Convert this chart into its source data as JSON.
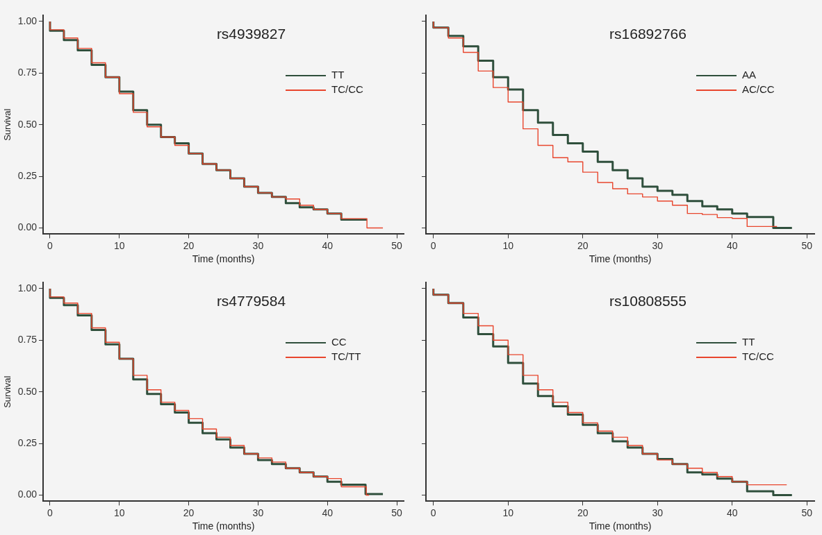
{
  "chart_data": [
    {
      "type": "step",
      "title": "rs4939827",
      "xlabel": "Time (months)",
      "ylabel": "Survival",
      "xlim": [
        -1,
        51
      ],
      "xticks": [
        0,
        10,
        20,
        30,
        40,
        50
      ],
      "ylim": [
        -0.03,
        1.03
      ],
      "yticks": [
        {
          "value": 0,
          "label": "0.00"
        },
        {
          "value": 0.25,
          "label": "0.25"
        },
        {
          "value": 0.5,
          "label": "0.50"
        },
        {
          "value": 0.75,
          "label": "0.75"
        },
        {
          "value": 1,
          "label": "1.00"
        }
      ],
      "legend": "top right",
      "grid": false,
      "marker": "none",
      "line_style": "solid",
      "series": [
        {
          "name": "TT",
          "color": "#2f4f3c",
          "x": [
            0,
            2,
            4,
            6,
            8,
            10,
            12,
            14,
            16,
            18,
            20,
            22,
            24,
            26,
            28,
            30,
            32,
            34,
            36,
            38,
            40,
            42,
            45.7
          ],
          "values": [
            1,
            0.955,
            0.91,
            0.86,
            0.79,
            0.73,
            0.66,
            0.57,
            0.5,
            0.44,
            0.41,
            0.36,
            0.31,
            0.28,
            0.24,
            0.2,
            0.17,
            0.15,
            0.12,
            0.1,
            0.09,
            0.07,
            0.04
          ]
        },
        {
          "name": "TC/CC",
          "color": "#e8452c",
          "x": [
            0,
            2,
            4,
            6,
            8,
            10,
            12,
            14,
            16,
            18,
            20,
            22,
            24,
            26,
            28,
            30,
            32,
            34,
            36,
            38,
            40,
            42,
            45.7,
            48
          ],
          "values": [
            1,
            0.96,
            0.92,
            0.87,
            0.8,
            0.73,
            0.65,
            0.56,
            0.49,
            0.44,
            0.4,
            0.36,
            0.31,
            0.28,
            0.24,
            0.2,
            0.17,
            0.15,
            0.14,
            0.11,
            0.09,
            0.07,
            0.045,
            0
          ]
        }
      ]
    },
    {
      "type": "step",
      "title": "rs16892766",
      "xlabel": "Time (months)",
      "xlim": [
        -1,
        51
      ],
      "xticks": [
        0,
        10,
        20,
        30,
        40,
        50
      ],
      "ylim": [
        -0.03,
        1.03
      ],
      "yticks": [
        {
          "value": 0,
          "label": null
        },
        {
          "value": 0.25,
          "label": null
        },
        {
          "value": 0.5,
          "label": null
        },
        {
          "value": 0.75,
          "label": null
        },
        {
          "value": 1,
          "label": null
        }
      ],
      "tick_labels": "x",
      "legend": "top right",
      "grid": false,
      "marker": "none",
      "line_style": "solid",
      "series": [
        {
          "name": "AA",
          "color": "#2f4f3c",
          "x": [
            0,
            2,
            4,
            6,
            8,
            10,
            12,
            14,
            16,
            18,
            20,
            22,
            24,
            26,
            28,
            30,
            32,
            34,
            36,
            38,
            40,
            42,
            45.5,
            48
          ],
          "values": [
            1,
            0.97,
            0.93,
            0.88,
            0.81,
            0.73,
            0.67,
            0.57,
            0.51,
            0.45,
            0.41,
            0.37,
            0.32,
            0.28,
            0.24,
            0.2,
            0.18,
            0.16,
            0.13,
            0.105,
            0.09,
            0.07,
            0.053,
            0
          ]
        },
        {
          "name": "AC/CC",
          "color": "#e8452c",
          "x": [
            0,
            2,
            4,
            6,
            8,
            10,
            12,
            14,
            16,
            18,
            20,
            22,
            24,
            26,
            28,
            30,
            32,
            34,
            36,
            38,
            40,
            42,
            46
          ],
          "values": [
            1,
            0.97,
            0.92,
            0.85,
            0.76,
            0.68,
            0.61,
            0.48,
            0.4,
            0.34,
            0.32,
            0.27,
            0.22,
            0.19,
            0.165,
            0.15,
            0.13,
            0.11,
            0.07,
            0.065,
            0.05,
            0.046,
            0.007
          ]
        }
      ]
    },
    {
      "type": "step",
      "title": "rs4779584",
      "xlabel": "Time (months)",
      "ylabel": "Survival",
      "xlim": [
        -1,
        51
      ],
      "xticks": [
        0,
        10,
        20,
        30,
        40,
        50
      ],
      "ylim": [
        -0.03,
        1.03
      ],
      "yticks": [
        {
          "value": 0,
          "label": "0.00"
        },
        {
          "value": 0.25,
          "label": "0.25"
        },
        {
          "value": 0.5,
          "label": "0.50"
        },
        {
          "value": 0.75,
          "label": "0.75"
        },
        {
          "value": 1,
          "label": "1.00"
        }
      ],
      "legend": "top right",
      "grid": false,
      "marker": "none",
      "line_style": "solid",
      "series": [
        {
          "name": "CC",
          "color": "#2f4f3c",
          "x": [
            0,
            2,
            4,
            6,
            8,
            10,
            12,
            14,
            16,
            18,
            20,
            22,
            24,
            26,
            28,
            30,
            32,
            34,
            36,
            38,
            40,
            42,
            45.5,
            48
          ],
          "values": [
            1,
            0.955,
            0.92,
            0.87,
            0.8,
            0.73,
            0.66,
            0.56,
            0.49,
            0.44,
            0.4,
            0.35,
            0.3,
            0.27,
            0.23,
            0.2,
            0.17,
            0.15,
            0.13,
            0.11,
            0.09,
            0.065,
            0.05,
            0.005
          ]
        },
        {
          "name": "TC/TT",
          "color": "#e8452c",
          "x": [
            0,
            2,
            4,
            6,
            8,
            10,
            12,
            14,
            16,
            18,
            20,
            22,
            24,
            26,
            28,
            30,
            32,
            34,
            36,
            38,
            40,
            42,
            45.6,
            46
          ],
          "values": [
            1,
            0.96,
            0.93,
            0.88,
            0.81,
            0.74,
            0.66,
            0.58,
            0.51,
            0.45,
            0.41,
            0.37,
            0.32,
            0.28,
            0.24,
            0.2,
            0.18,
            0.16,
            0.13,
            0.11,
            0.09,
            0.08,
            0.04,
            0
          ]
        }
      ]
    },
    {
      "type": "step",
      "title": "rs10808555",
      "xlabel": "Time (months)",
      "xlim": [
        -1,
        51
      ],
      "xticks": [
        0,
        10,
        20,
        30,
        40,
        50
      ],
      "ylim": [
        -0.03,
        1.03
      ],
      "yticks": [
        {
          "value": 0,
          "label": null
        },
        {
          "value": 0.25,
          "label": null
        },
        {
          "value": 0.5,
          "label": null
        },
        {
          "value": 0.75,
          "label": null
        },
        {
          "value": 1,
          "label": null
        }
      ],
      "tick_labels": "x",
      "legend": "top right",
      "grid": false,
      "marker": "none",
      "line_style": "solid",
      "series": [
        {
          "name": "TT",
          "color": "#2f4f3c",
          "x": [
            0,
            2,
            4,
            6,
            8,
            10,
            12,
            14,
            16,
            18,
            20,
            22,
            24,
            26,
            28,
            30,
            32,
            34,
            36,
            38,
            40,
            42,
            45.5,
            48
          ],
          "values": [
            1,
            0.97,
            0.93,
            0.86,
            0.78,
            0.72,
            0.64,
            0.54,
            0.48,
            0.43,
            0.39,
            0.34,
            0.3,
            0.26,
            0.23,
            0.2,
            0.175,
            0.15,
            0.11,
            0.1,
            0.08,
            0.065,
            0.018,
            0
          ]
        },
        {
          "name": "TC/CC",
          "color": "#e8452c",
          "x": [
            0,
            2,
            4,
            6,
            8,
            10,
            12,
            14,
            16,
            18,
            20,
            22,
            24,
            26,
            28,
            30,
            32,
            34,
            36,
            38,
            40,
            42,
            45.5,
            47.3
          ],
          "values": [
            1,
            0.97,
            0.93,
            0.88,
            0.82,
            0.75,
            0.68,
            0.58,
            0.51,
            0.45,
            0.4,
            0.35,
            0.31,
            0.28,
            0.24,
            0.2,
            0.17,
            0.15,
            0.13,
            0.11,
            0.09,
            0.065,
            0.05,
            0.05
          ]
        }
      ]
    }
  ]
}
